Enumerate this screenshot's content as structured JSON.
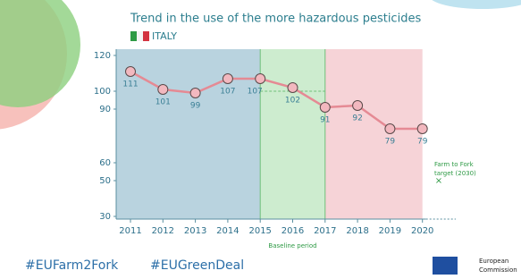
{
  "chart_data": {
    "type": "line",
    "title": "Trend in the use of the more hazardous pesticides",
    "country": "ITALY",
    "categories": [
      "2011",
      "2012",
      "2013",
      "2014",
      "2015",
      "2016",
      "2017",
      "2018",
      "2019",
      "2020"
    ],
    "values": [
      111,
      101,
      99,
      107,
      107,
      102,
      91,
      92,
      79,
      79
    ],
    "color": "#e58a94",
    "ylim": [
      30,
      120
    ],
    "yticks": [
      30,
      50,
      60,
      90,
      100,
      120
    ],
    "baseline_label": "Baseline period",
    "target_label": [
      "Farm to Fork",
      "target (2030)"
    ],
    "target": 50,
    "footer": {
      "hashtags": [
        "#EUFarm2Fork",
        "#EUGreenDeal"
      ],
      "logo": [
        "European",
        "Commission"
      ]
    }
  }
}
